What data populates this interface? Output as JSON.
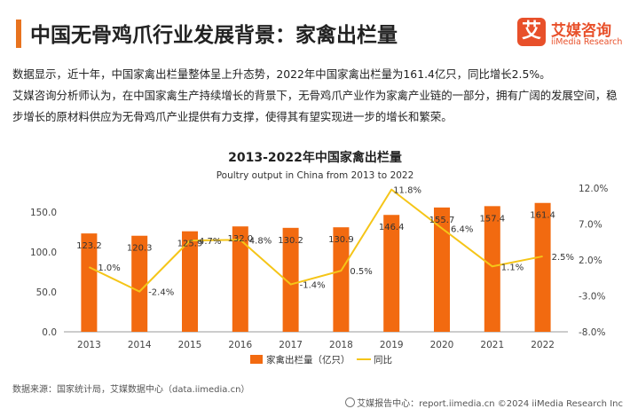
{
  "header": {
    "title": "中国无骨鸡爪行业发展背景：家禽出栏量",
    "logo_mark": "艾",
    "logo_cn": "艾媒咨询",
    "logo_en": "iiMedia Research"
  },
  "intro": {
    "p1": "数据显示，近十年，中国家禽出栏量整体呈上升态势，2022年中国家禽出栏量为161.4亿只，同比增长2.5%。",
    "p2": "艾媒咨询分析师认为，在中国家禽生产持续增长的背景下，无骨鸡爪产业作为家禽产业链的一部分，拥有广阔的发展空间，稳步增长的原材料供应为无骨鸡爪产业提供有力支撑，使得其有望实现进一步的增长和繁荣。"
  },
  "chart_data": {
    "type": "bar",
    "title": "2013-2022年中国家禽出栏量",
    "subtitle": "Poultry output in China from 2013 to 2022",
    "categories": [
      "2013",
      "2014",
      "2015",
      "2016",
      "2017",
      "2018",
      "2019",
      "2020",
      "2021",
      "2022"
    ],
    "series": [
      {
        "name": "家禽出栏量（亿只）",
        "type": "bar",
        "axis": "left",
        "color": "#f26a10",
        "values": [
          123.2,
          120.3,
          125.9,
          132.0,
          130.2,
          130.9,
          146.4,
          155.7,
          157.4,
          161.4
        ],
        "labels": [
          "123.2",
          "120.3",
          "125.9",
          "132.0",
          "130.2",
          "130.9",
          "146.4",
          "155.7",
          "157.4",
          "161.4"
        ]
      },
      {
        "name": "同比",
        "type": "line",
        "axis": "right",
        "color": "#f5c518",
        "values": [
          1.0,
          -2.4,
          4.7,
          4.8,
          -1.4,
          0.5,
          11.8,
          6.4,
          1.1,
          2.5
        ],
        "labels": [
          "1.0%",
          "-2.4%",
          "4.7%",
          "4.8%",
          "-1.4%",
          "0.5%",
          "11.8%",
          "6.4%",
          "1.1%",
          "2.5%"
        ]
      }
    ],
    "left_axis": {
      "ylim": [
        0,
        180
      ],
      "ticks": [
        0,
        50,
        100,
        150
      ],
      "tick_labels": [
        "0.0",
        "50.0",
        "100.0",
        "150.0"
      ]
    },
    "right_axis": {
      "ylim": [
        -8,
        12
      ],
      "ticks": [
        -8,
        -3,
        2,
        7,
        12
      ],
      "tick_labels": [
        "-8.0%",
        "-3.0%",
        "2.0%",
        "7.0%",
        "12.0%"
      ]
    },
    "legend": "bottom",
    "grid": false
  },
  "source": "数据来源：国家统计局，艾媒数据中心（data.iimedia.cn）",
  "footer": "艾媒报告中心：report.iimedia.cn  ©2024  iiMedia Research  Inc"
}
